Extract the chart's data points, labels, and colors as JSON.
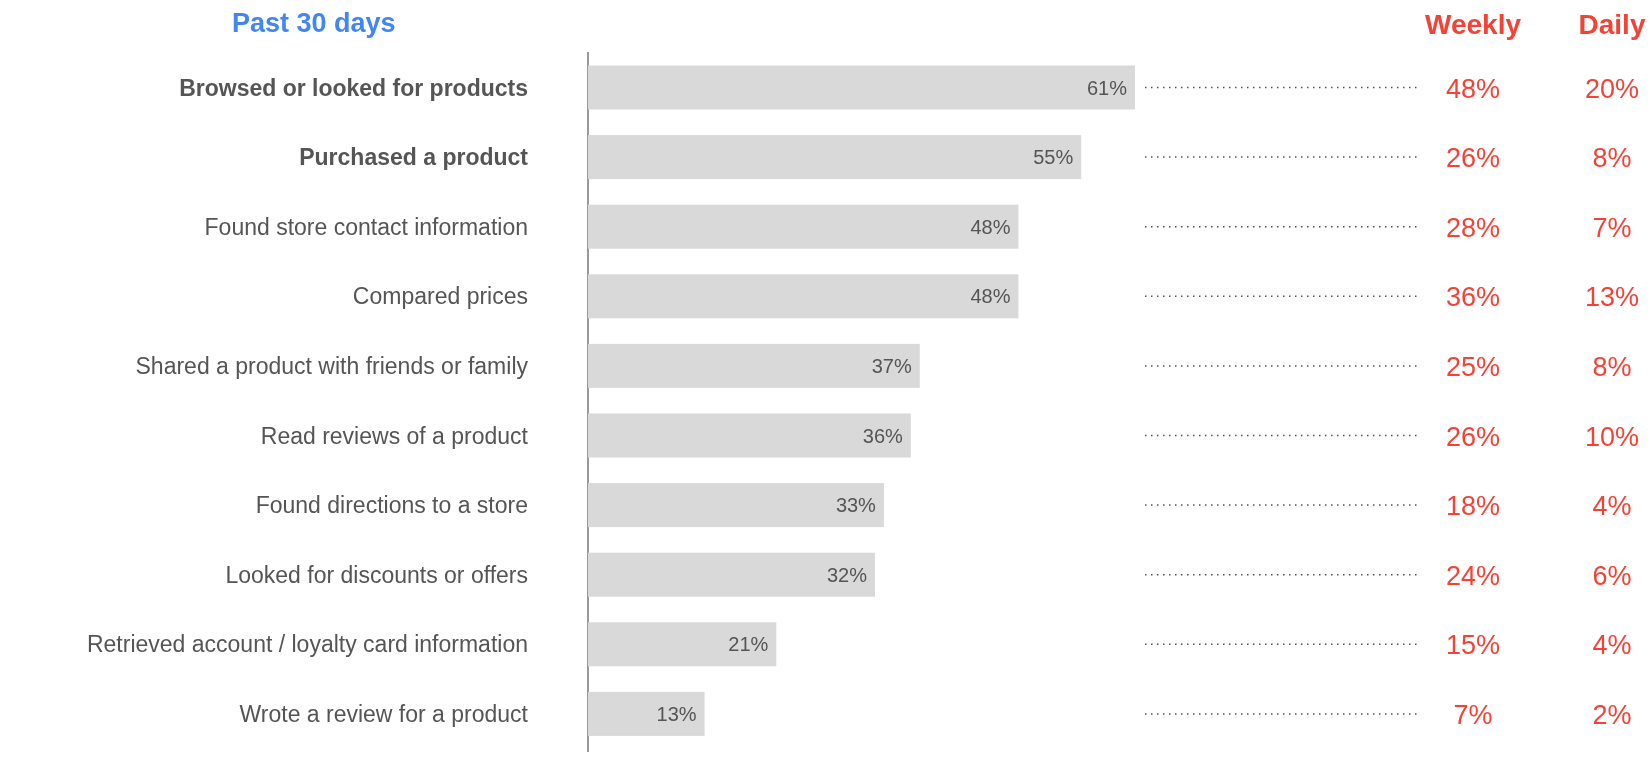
{
  "chart_data": [
    {
      "type": "bar",
      "orientation": "horizontal",
      "title": "Past 30 days",
      "categories": [
        "Browsed or looked for products",
        "Purchased a product",
        "Found store contact information",
        "Compared prices",
        "Shared a product with friends or family",
        "Read reviews of a product",
        "Found directions to a store",
        "Looked for discounts or offers",
        "Retrieved account / loyalty card information",
        "Wrote a review for a product"
      ],
      "values": [
        61,
        55,
        48,
        48,
        37,
        36,
        33,
        32,
        21,
        13
      ],
      "value_labels": [
        "61%",
        "55%",
        "48%",
        "48%",
        "37%",
        "36%",
        "33%",
        "32%",
        "21%",
        "13%"
      ],
      "color": "#d9d9d9"
    },
    {
      "type": "other",
      "title": "Weekly",
      "values": [
        48,
        26,
        28,
        36,
        25,
        26,
        18,
        24,
        15,
        7
      ],
      "value_labels": [
        "48%",
        "26%",
        "28%",
        "36%",
        "25%",
        "26%",
        "18%",
        "24%",
        "15%",
        "7%"
      ],
      "color": "#f44336"
    },
    {
      "type": "other",
      "title": "Daily",
      "values": [
        20,
        8,
        7,
        13,
        8,
        10,
        4,
        6,
        4,
        2
      ],
      "value_labels": [
        "20%",
        "8%",
        "7%",
        "13%",
        "8%",
        "10%",
        "4%",
        "6%",
        "4%",
        "2%"
      ],
      "color": "#f44336"
    }
  ]
}
